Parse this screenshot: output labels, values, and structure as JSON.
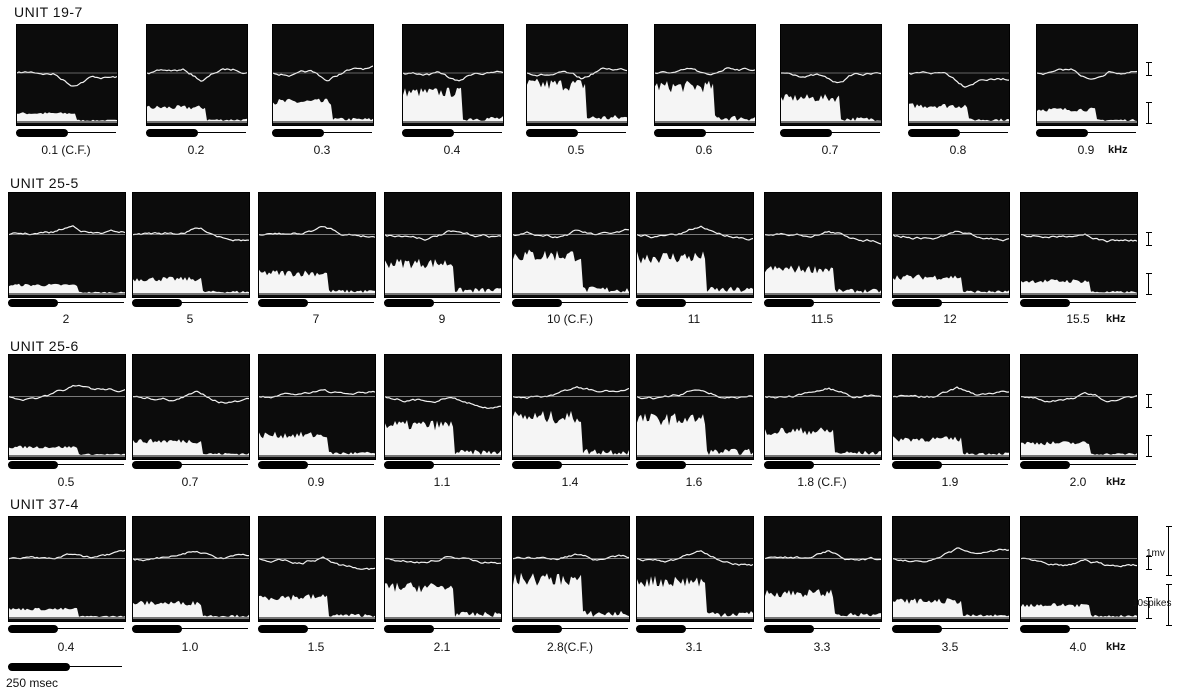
{
  "figure": {
    "rows": [
      {
        "title": "UNIT 19-7",
        "unit_label": "kHz",
        "freqs": [
          "0.1 (C.F.)",
          "0.2",
          "0.3",
          "0.4",
          "0.5",
          "0.6",
          "0.7",
          "0.8",
          "0.9"
        ]
      },
      {
        "title": "UNIT 25-5",
        "unit_label": "kHz",
        "freqs": [
          "2",
          "5",
          "7",
          "9",
          "10 (C.F.)",
          "11",
          "11.5",
          "12",
          "15.5"
        ]
      },
      {
        "title": "UNIT 25-6",
        "unit_label": "kHz",
        "freqs": [
          "0.5",
          "0.7",
          "0.9",
          "1.1",
          "1.4",
          "1.6",
          "1.8 (C.F.)",
          "1.9",
          "2.0"
        ]
      },
      {
        "title": "UNIT 37-4",
        "unit_label": "kHz",
        "freqs": [
          "0.4",
          "1.0",
          "1.5",
          "2.1",
          "2.8(C.F.)",
          "3.1",
          "3.3",
          "3.5",
          "4.0"
        ]
      }
    ],
    "scale_mv": "1mv",
    "scale_spikes": "10spikes",
    "time_scale": "250 msec"
  }
}
